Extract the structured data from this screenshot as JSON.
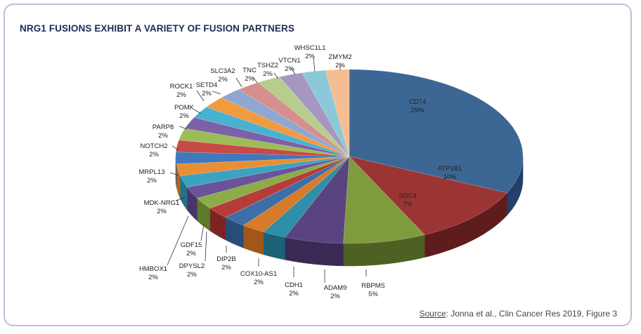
{
  "chart_data": {
    "type": "pie",
    "title": "NRG1 FUSIONS EXHIBIT A VARIETY OF FUSION PARTNERS",
    "slices": [
      {
        "label": "CD74",
        "pct_label": "29%",
        "value": 29,
        "color": "#3c6795",
        "side": "#22406a"
      },
      {
        "label": "ATP1B1",
        "pct_label": "10%",
        "value": 10,
        "color": "#9b3533",
        "side": "#5f1c1c"
      },
      {
        "label": "SDC4",
        "pct_label": "7%",
        "value": 7,
        "color": "#7f9b3e",
        "side": "#4d6122"
      },
      {
        "label": "RBPMS",
        "pct_label": "5%",
        "value": 5,
        "color": "#5a4480",
        "side": "#3a2955"
      },
      {
        "label": "ADAM9",
        "pct_label": "2%",
        "value": 2,
        "color": "#2f8ea8",
        "side": "#1c6175"
      },
      {
        "label": "CDH1",
        "pct_label": "2%",
        "value": 2,
        "color": "#d77b2b",
        "side": "#a3561a"
      },
      {
        "label": "COX10-AS1",
        "pct_label": "2%",
        "value": 2,
        "color": "#3e6ea8",
        "side": "#264c7a"
      },
      {
        "label": "DIP2B",
        "pct_label": "2%",
        "value": 2,
        "color": "#b63c39",
        "side": "#7d2422"
      },
      {
        "label": "DPYSL2",
        "pct_label": "2%",
        "value": 2,
        "color": "#8bac47",
        "side": "#5c7a2a"
      },
      {
        "label": "GDF15",
        "pct_label": "2%",
        "value": 2,
        "color": "#6b539a",
        "side": "#47356a"
      },
      {
        "label": "HMBOX1",
        "pct_label": "2%",
        "value": 2,
        "color": "#3ba2c2",
        "side": "#237289"
      },
      {
        "label": "MDK-NRG1",
        "pct_label": "2%",
        "value": 2,
        "color": "#e88f34",
        "side": "#b3661d"
      },
      {
        "label": "MRPL13",
        "pct_label": "2%",
        "value": 2,
        "color": "#3f78bd",
        "side": "#2b5690"
      },
      {
        "label": "NOTCH2",
        "pct_label": "2%",
        "value": 2,
        "color": "#c64a45",
        "side": "#922e2b"
      },
      {
        "label": "PARP8",
        "pct_label": "2%",
        "value": 2,
        "color": "#9cbd55",
        "side": "#6b8a34"
      },
      {
        "label": "POMK",
        "pct_label": "2%",
        "value": 2,
        "color": "#7b61a7",
        "side": "#523f78"
      },
      {
        "label": "ROCK1",
        "pct_label": "2%",
        "value": 2,
        "color": "#48b2d0",
        "side": "#2c84a0"
      },
      {
        "label": "SETD4",
        "pct_label": "2%",
        "value": 2,
        "color": "#f29a3e",
        "side": "#bf6f22"
      },
      {
        "label": "SLC3A2",
        "pct_label": "2%",
        "value": 2,
        "color": "#8fa7d1",
        "side": "#6580ad"
      },
      {
        "label": "TNC",
        "pct_label": "2%",
        "value": 2,
        "color": "#d58f8d",
        "side": "#a8605e"
      },
      {
        "label": "TSHZ2",
        "pct_label": "2%",
        "value": 2,
        "color": "#b6cd8e",
        "side": "#88a262"
      },
      {
        "label": "VTCN1",
        "pct_label": "2%",
        "value": 2,
        "color": "#a597c2",
        "side": "#786a99"
      },
      {
        "label": "WHSC1L1",
        "pct_label": "2%",
        "value": 2,
        "color": "#8cc9d8",
        "side": "#5f9fb0"
      },
      {
        "label": "ZMYM2",
        "pct_label": "2%",
        "value": 2,
        "color": "#f5be92",
        "side": "#cf9465"
      }
    ]
  },
  "source": {
    "prefix": "Source",
    "text": ": Jonna et al., Clin Cancer Res 2019, Figure 3"
  }
}
